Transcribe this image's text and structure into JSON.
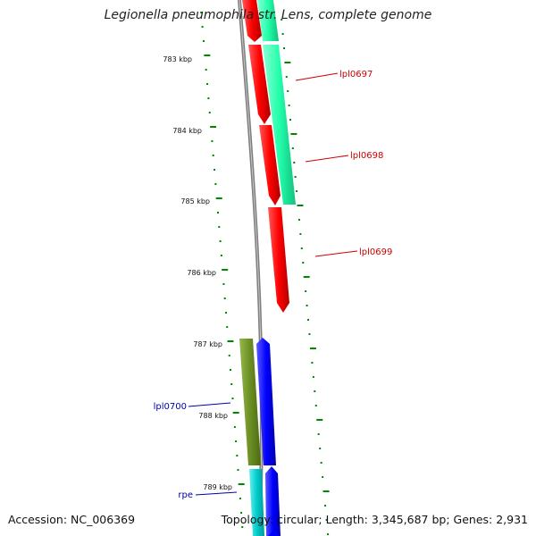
{
  "title": "Legionella pneumophila str. Lens, complete genome",
  "footer": {
    "accession": "Accession: NC_006369",
    "summary": "Topology: circular; Length: 3,345,687 bp; Genes: 2,931"
  },
  "scale_labels": [
    "783 kbp",
    "784 kbp",
    "785 kbp",
    "786 kbp",
    "787 kbp",
    "788 kbp",
    "789 kbp"
  ],
  "gene_labels": [
    {
      "text": "lpl0697",
      "color": "#cc0000"
    },
    {
      "text": "lpl0698",
      "color": "#cc0000"
    },
    {
      "text": "lpl0699",
      "color": "#cc0000"
    },
    {
      "text": "lpl0700",
      "color": "#0000aa"
    },
    {
      "text": "rpe",
      "color": "#0000aa"
    }
  ],
  "colors": {
    "backbone": "#7f7f7f",
    "forward_cds": "#ff0000",
    "reverse_cds": "#0000ff",
    "forward_gene": "#22ffaa",
    "reverse_gene_olive": "#6b8e23",
    "reverse_gene_cyan": "#00cccc",
    "tick": "#008800"
  }
}
